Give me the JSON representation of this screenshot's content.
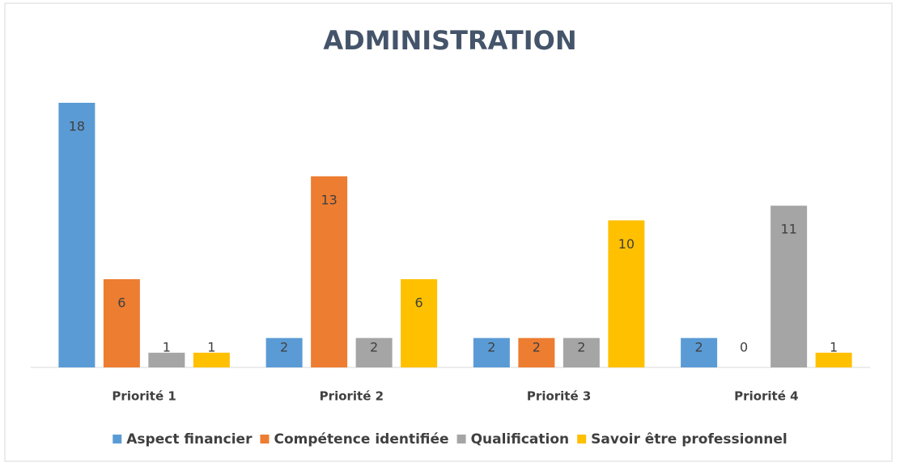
{
  "chart_data": {
    "type": "bar",
    "title": "ADMINISTRATION",
    "categories": [
      "Priorité 1",
      "Priorité 2",
      "Priorité 3",
      "Priorité 4"
    ],
    "series": [
      {
        "name": "Aspect financier",
        "color": "#5b9bd5",
        "values": [
          18,
          2,
          2,
          2
        ]
      },
      {
        "name": "Compétence identifiée",
        "color": "#ed7d31",
        "values": [
          6,
          13,
          2,
          0
        ]
      },
      {
        "name": "Qualification",
        "color": "#a5a5a5",
        "values": [
          1,
          2,
          2,
          11
        ]
      },
      {
        "name": "Savoir être professionnel",
        "color": "#ffc000",
        "values": [
          1,
          6,
          10,
          1
        ]
      }
    ],
    "legend": "bottom"
  }
}
